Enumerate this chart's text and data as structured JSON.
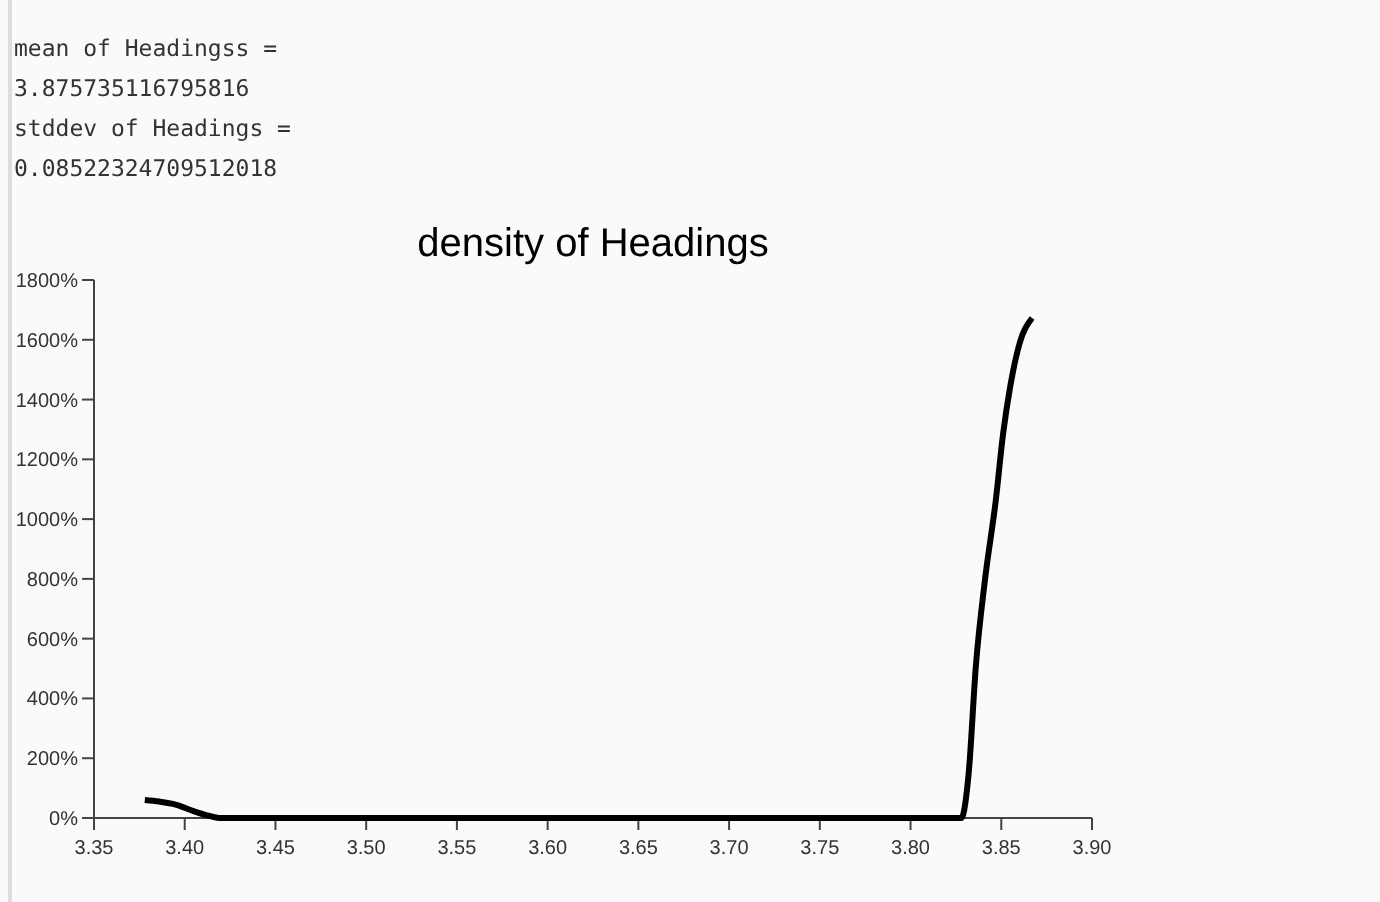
{
  "chart_data": {
    "type": "line",
    "title": "density of Headings",
    "annotations": [
      "mean of Headingss =",
      "3.875735116795816",
      "stddev of Headings =",
      "0.08522324709512018"
    ],
    "x": [
      3.378,
      3.386,
      3.395,
      3.404,
      3.413,
      3.419,
      3.6,
      3.828,
      3.832,
      3.836,
      3.841,
      3.847,
      3.851,
      3.855,
      3.86,
      3.867
    ],
    "series": [
      {
        "color": "#000000",
        "values": [
          60,
          55,
          45,
          25,
          8,
          0,
          0,
          0,
          147,
          509,
          796,
          1064,
          1285,
          1446,
          1586,
          1673
        ]
      }
    ],
    "xlim": [
      3.35,
      3.9
    ],
    "xticks": [
      {
        "value": 3.35,
        "label": "3.35"
      },
      {
        "value": 3.4,
        "label": "3.40"
      },
      {
        "value": 3.45,
        "label": "3.45"
      },
      {
        "value": 3.5,
        "label": "3.50"
      },
      {
        "value": 3.55,
        "label": "3.55"
      },
      {
        "value": 3.6,
        "label": "3.60"
      },
      {
        "value": 3.65,
        "label": "3.65"
      },
      {
        "value": 3.7,
        "label": "3.70"
      },
      {
        "value": 3.75,
        "label": "3.75"
      },
      {
        "value": 3.8,
        "label": "3.80"
      },
      {
        "value": 3.85,
        "label": "3.85"
      },
      {
        "value": 3.9,
        "label": "3.90"
      }
    ],
    "ylim": [
      0,
      1800
    ],
    "yticks": [
      {
        "value": 0,
        "label": "0%"
      },
      {
        "value": 200,
        "label": "200%"
      },
      {
        "value": 400,
        "label": "400%"
      },
      {
        "value": 600,
        "label": "600%"
      },
      {
        "value": 800,
        "label": "800%"
      },
      {
        "value": 1000,
        "label": "1000%"
      },
      {
        "value": 1200,
        "label": "1200%"
      },
      {
        "value": 1400,
        "label": "1400%"
      },
      {
        "value": 1600,
        "label": "1600%"
      },
      {
        "value": 1800,
        "label": "1800%"
      }
    ],
    "line_style": "solid"
  }
}
